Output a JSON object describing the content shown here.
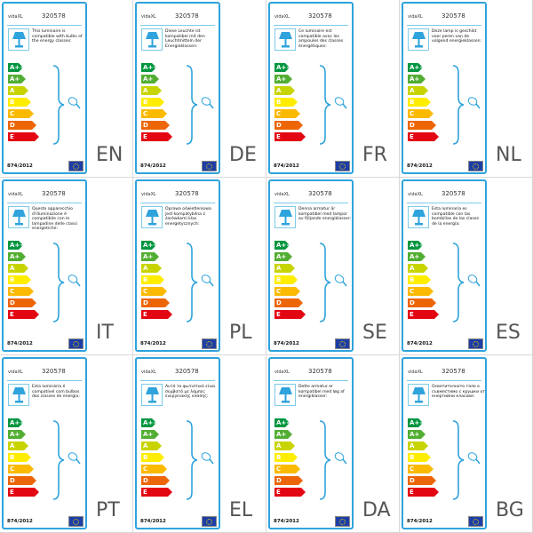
{
  "brand": "vidaXL",
  "model": "320578",
  "regulation": "874/2012",
  "energy_classes": [
    {
      "label": "A++",
      "color": "#00963f"
    },
    {
      "label": "A+",
      "color": "#52ae32"
    },
    {
      "label": "A",
      "color": "#c8d400"
    },
    {
      "label": "B",
      "color": "#ffed00"
    },
    {
      "label": "C",
      "color": "#fbba00"
    },
    {
      "label": "D",
      "color": "#ec6608"
    },
    {
      "label": "E",
      "color": "#e30613"
    }
  ],
  "accent_color": "#2ea3dc",
  "panels": [
    {
      "lang": "EN",
      "text": "This luminaire is compatible with bulbs of the energy classes:"
    },
    {
      "lang": "DE",
      "text": "Diese Leuchte ist kompatibel mit den Leuchtmitteln der Energieklassen:"
    },
    {
      "lang": "FR",
      "text": "Ce luminaire est compatible avec les ampoules des classes énergétiques:"
    },
    {
      "lang": "NL",
      "text": "Deze lamp is geschikt voor peren van de volgend energieklassen:"
    },
    {
      "lang": "IT",
      "text": "Questo apparecchio d'illuminazione è compatibile con le lampadine delle classi energetiche:"
    },
    {
      "lang": "PL",
      "text": "Oprawa oświetleniowa jest kompatybilna z żarówkami klas energetycznych:"
    },
    {
      "lang": "SE",
      "text": "Denna armatur är kompatibel med lampor av följande energiklasser:"
    },
    {
      "lang": "ES",
      "text": "Esta luminaria es compatible con las bombillas de las clases de la energía:"
    },
    {
      "lang": "PT",
      "text": "Esta luminária é compatível com bulbos das classes de energia:"
    },
    {
      "lang": "EL",
      "text": "Αυτό το φωτιστικό είναι συμβατό με λάμπες ενεργειακής κλάσης:"
    },
    {
      "lang": "DA",
      "text": "Dette armatur er kompatibel med løg af energiklasser:"
    },
    {
      "lang": "BG",
      "text": "Осветителното тяло е съвместимо с крушки от енергийни класове:"
    }
  ]
}
